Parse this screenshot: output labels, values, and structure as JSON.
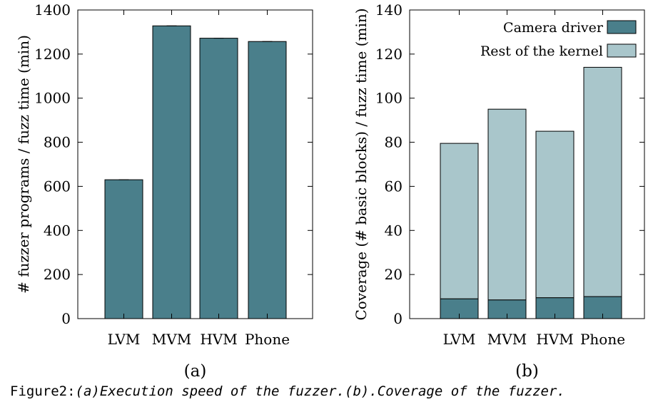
{
  "chart_data": [
    {
      "type": "bar",
      "panel_label": "(a)",
      "categories": [
        "LVM",
        "MVM",
        "HVM",
        "Phone"
      ],
      "series": [
        {
          "name": "",
          "values": [
            630,
            1328,
            1272,
            1257
          ],
          "color": "#4a7f8b"
        }
      ],
      "error_bars": true,
      "title": "",
      "xlabel": "",
      "ylabel": "# fuzzer programs / fuzz time (min)",
      "ylim": [
        0,
        1400
      ],
      "yticks": [
        0,
        200,
        400,
        600,
        800,
        1000,
        1200,
        1400
      ],
      "grid": false,
      "legend": null
    },
    {
      "type": "bar",
      "stacked": true,
      "panel_label": "(b)",
      "categories": [
        "LVM",
        "MVM",
        "HVM",
        "Phone"
      ],
      "series": [
        {
          "name": "Camera driver",
          "values": [
            9,
            8.5,
            9.5,
            10
          ],
          "color": "#4a7f8b"
        },
        {
          "name": "Rest of the kernel",
          "values": [
            70.5,
            86.5,
            75.5,
            104
          ],
          "color": "#a9c6cb"
        }
      ],
      "title": "",
      "xlabel": "",
      "ylabel": "Coverage (# basic blocks) / fuzz time (min)",
      "ylim": [
        0,
        140
      ],
      "yticks": [
        0,
        20,
        40,
        60,
        80,
        100,
        120,
        140
      ],
      "grid": false,
      "legend": "top-right"
    }
  ],
  "caption": {
    "prefix": "Figure2:",
    "text": "(a)Execution speed of the fuzzer.(b).Coverage of the fuzzer."
  }
}
